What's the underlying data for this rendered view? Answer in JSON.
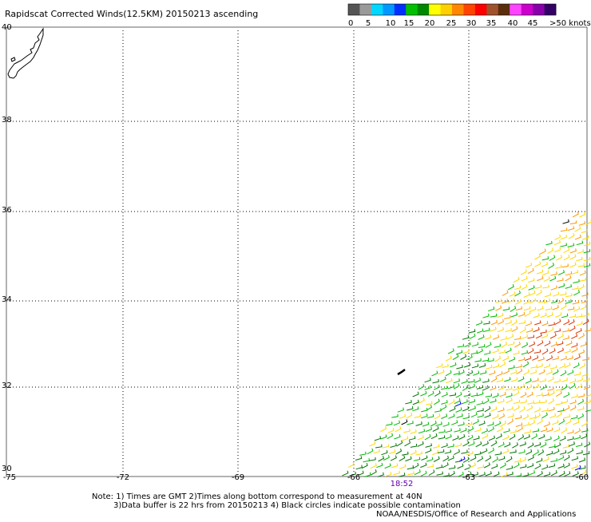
{
  "title": "Rapidscat Corrected Winds(12.5KM) 20150213 ascending",
  "legend": {
    "colors": [
      "#555555",
      "#9a9a9a",
      "#00d8ff",
      "#0099ff",
      "#0030ff",
      "#00c000",
      "#008800",
      "#ffff00",
      "#ffd000",
      "#ff8800",
      "#ff4400",
      "#ff0000",
      "#a0522d",
      "#5a2d0c",
      "#ff44ff",
      "#cc00cc",
      "#8800aa",
      "#330066"
    ],
    "labels": [
      "0",
      "5",
      "10",
      "15",
      "20",
      "25",
      "30",
      "35",
      "40",
      "45",
      ">50 knots"
    ]
  },
  "axes": {
    "lon_labels": [
      "-75",
      "-72",
      "-69",
      "-66",
      "-63",
      "-60"
    ],
    "lat_labels": [
      "40",
      "38",
      "36",
      "34",
      "32",
      "30"
    ]
  },
  "time_label": "18:52",
  "notes": [
    "Note: 1) Times are GMT 2)Times along bottom correspond to measurement at 40N",
    "3)Data buffer is 22 hrs from 20150213 4) Black circles indicate possible contamination"
  ],
  "credit": "NOAA/NESDIS/Office of Research and Applications",
  "wind_colors": {
    "black": "#000000",
    "green": "#00bb00",
    "dark_green": "#007700",
    "yellow": "#ffd800",
    "orange": "#ff9900",
    "red_orange": "#dd3300",
    "blue": "#0000ff"
  }
}
